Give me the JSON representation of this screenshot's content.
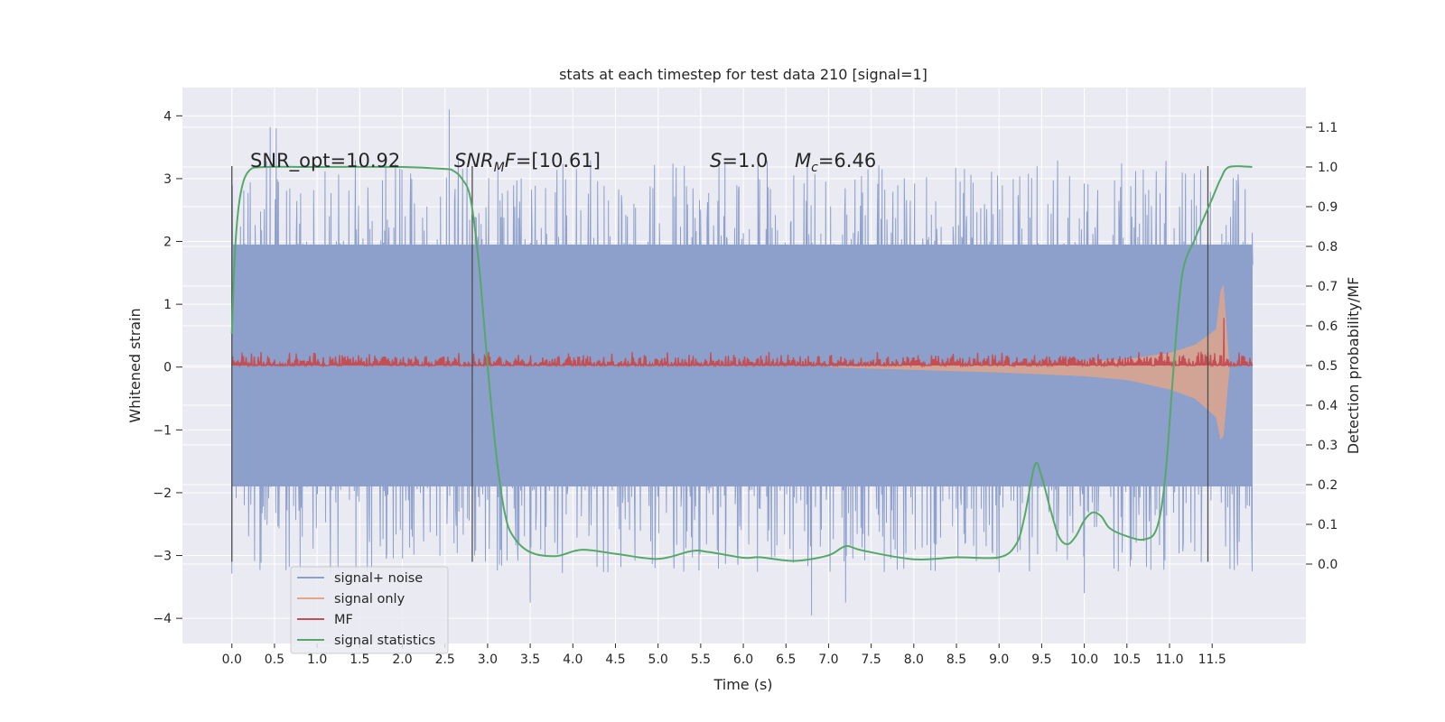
{
  "chart_data": {
    "type": "line",
    "title": "stats at each timestep for test data 210 [signal=1]",
    "xlabel": "Time (s)",
    "ylabel_left": "Whitened strain",
    "ylabel_right": "Detection probability/MF",
    "xlim": [
      -0.58,
      12.6
    ],
    "ylim_left": [
      -4.4,
      4.45
    ],
    "ylim_right": [
      -0.2,
      1.2
    ],
    "x_ticks": [
      "0.0",
      "0.5",
      "1.0",
      "1.5",
      "2.0",
      "2.5",
      "3.0",
      "3.5",
      "4.0",
      "4.5",
      "5.0",
      "5.5",
      "6.0",
      "6.5",
      "7.0",
      "7.5",
      "8.0",
      "8.5",
      "9.0",
      "9.5",
      "10.0",
      "10.5",
      "11.0",
      "11.5"
    ],
    "y_ticks_left": [
      "4",
      "3",
      "2",
      "1",
      "0",
      "−1",
      "−2",
      "−3",
      "−4"
    ],
    "y_ticks_right": [
      "1.1",
      "1.0",
      "0.9",
      "0.8",
      "0.7",
      "0.6",
      "0.5",
      "0.4",
      "0.3",
      "0.2",
      "0.1",
      "0.0"
    ],
    "annotations": [
      {
        "text": "SNR_opt=10.92",
        "x": 0.2,
        "y": 3.22
      },
      {
        "text": "SNR_MF=[10.61]",
        "x": 2.6,
        "y": 3.22
      },
      {
        "text": "S=1.0",
        "x": 5.6,
        "y": 3.22
      },
      {
        "text": "M_c=6.46",
        "x": 6.6,
        "y": 3.22
      }
    ],
    "vlines": [
      0.0,
      2.82,
      11.45
    ],
    "vline_range": [
      -3.1,
      3.2
    ],
    "legend": {
      "placement": "lower-left",
      "entries": [
        {
          "label": "signal+ noise",
          "color": "#8da0cb"
        },
        {
          "label": "signal only",
          "color": "#e8a584"
        },
        {
          "label": "MF",
          "color": "#c44e52"
        },
        {
          "label": "signal statistics",
          "color": "#55a868"
        }
      ]
    },
    "series": [
      {
        "name": "signal+ noise",
        "axis": "left",
        "color": "#8da0cb",
        "x_range": [
          0.0,
          11.97
        ],
        "band": [
          -1.9,
          1.95
        ],
        "typical_peak": 3.3,
        "extreme_min": -3.95,
        "extreme_max": 4.1
      },
      {
        "name": "signal only",
        "axis": "left",
        "color": "#e8a584",
        "envelope": {
          "x": [
            7.0,
            8.0,
            9.0,
            10.0,
            10.5,
            11.0,
            11.3,
            11.55,
            11.6,
            11.63,
            11.7
          ],
          "upper": [
            0.0,
            0.02,
            0.04,
            0.08,
            0.12,
            0.22,
            0.35,
            0.6,
            1.2,
            1.3,
            0.02
          ],
          "lower": [
            0.0,
            -0.04,
            -0.08,
            -0.14,
            -0.2,
            -0.35,
            -0.5,
            -0.8,
            -1.15,
            -1.1,
            -0.02
          ]
        }
      },
      {
        "name": "MF",
        "axis": "right",
        "color": "#c44e52",
        "x_range": [
          0.0,
          11.97
        ],
        "baseline": 0.5,
        "amplitude": 0.035,
        "spike": {
          "x": 11.63,
          "y": 0.62
        }
      },
      {
        "name": "signal statistics",
        "axis": "right",
        "color": "#55a868",
        "x": [
          0.0,
          0.04,
          0.1,
          0.2,
          0.4,
          1.0,
          2.0,
          2.5,
          2.6,
          2.7,
          2.8,
          2.9,
          3.0,
          3.1,
          3.2,
          3.3,
          3.5,
          3.8,
          4.1,
          4.5,
          5.0,
          5.4,
          5.6,
          6.0,
          6.2,
          6.6,
          7.0,
          7.2,
          7.4,
          8.0,
          8.5,
          9.0,
          9.2,
          9.3,
          9.42,
          9.5,
          9.6,
          9.7,
          9.8,
          9.9,
          10.0,
          10.1,
          10.2,
          10.3,
          10.5,
          10.7,
          10.85,
          10.95,
          11.05,
          11.15,
          11.3,
          11.5,
          11.6,
          11.7,
          11.97
        ],
        "y": [
          0.58,
          0.8,
          0.93,
          0.99,
          1.0,
          1.0,
          1.0,
          0.995,
          0.99,
          0.97,
          0.92,
          0.75,
          0.5,
          0.28,
          0.13,
          0.07,
          0.03,
          0.02,
          0.036,
          0.026,
          0.013,
          0.033,
          0.03,
          0.016,
          0.017,
          0.008,
          0.022,
          0.045,
          0.034,
          0.012,
          0.017,
          0.017,
          0.05,
          0.12,
          0.25,
          0.22,
          0.14,
          0.07,
          0.05,
          0.07,
          0.11,
          0.13,
          0.12,
          0.09,
          0.07,
          0.062,
          0.09,
          0.22,
          0.5,
          0.73,
          0.82,
          0.92,
          0.97,
          1.0,
          1.0
        ]
      }
    ]
  }
}
